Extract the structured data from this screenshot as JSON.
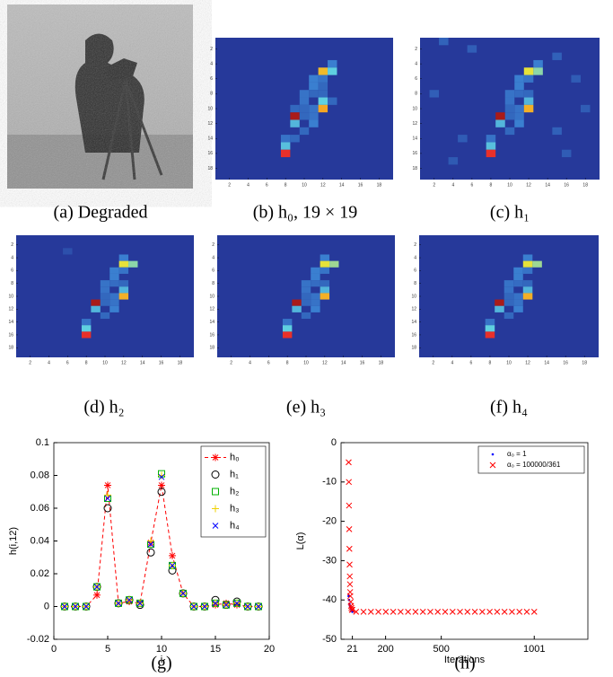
{
  "captions": [
    "(a) Degraded",
    "(b) h₀, 19 × 19",
    "(c) h₁",
    "(d) h₂",
    "(e) h₃",
    "(f) h₄",
    "(g)",
    "(h)"
  ],
  "chart_data": [
    {
      "type": "heatmap",
      "colormap": "jet",
      "background": 0,
      "xlim": [
        0.5,
        19.5
      ],
      "ylim": [
        0.5,
        19.5
      ],
      "xticks": [
        2,
        4,
        6,
        8,
        10,
        12,
        14,
        16,
        18
      ],
      "yticks": [
        2,
        4,
        6,
        8,
        10,
        12,
        14,
        16,
        18
      ],
      "cells": [
        [
          13,
          4,
          0.3
        ],
        [
          12,
          5,
          0.68
        ],
        [
          13,
          5,
          0.45
        ],
        [
          11,
          6,
          0.3
        ],
        [
          12,
          6,
          0.25
        ],
        [
          11,
          7,
          0.3
        ],
        [
          12,
          7,
          0.2
        ],
        [
          10,
          8,
          0.25
        ],
        [
          11,
          8,
          0.2
        ],
        [
          12,
          8,
          0.2
        ],
        [
          10,
          9,
          0.25
        ],
        [
          12,
          9,
          0.45
        ],
        [
          13,
          9,
          0.2
        ],
        [
          9,
          10,
          0.2
        ],
        [
          10,
          10,
          0.2
        ],
        [
          11,
          10,
          0.25
        ],
        [
          12,
          10,
          0.72
        ],
        [
          9,
          11,
          0.95
        ],
        [
          10,
          11,
          0.2
        ],
        [
          11,
          11,
          0.25
        ],
        [
          9,
          12,
          0.4
        ],
        [
          11,
          12,
          0.3
        ],
        [
          10,
          13,
          0.2
        ],
        [
          8,
          14,
          0.25
        ],
        [
          9,
          14,
          0.2
        ],
        [
          8,
          15,
          0.42
        ],
        [
          8,
          16,
          0.85
        ]
      ]
    },
    {
      "type": "heatmap",
      "colormap": "jet",
      "background": 0,
      "xlim": [
        0.5,
        19.5
      ],
      "ylim": [
        0.5,
        19.5
      ],
      "xticks": [
        2,
        4,
        6,
        8,
        10,
        12,
        14,
        16,
        18
      ],
      "yticks": [
        2,
        4,
        6,
        8,
        10,
        12,
        14,
        16,
        18
      ],
      "cells": [
        [
          3,
          1,
          0.18
        ],
        [
          6,
          2,
          0.16
        ],
        [
          15,
          3,
          0.17
        ],
        [
          2,
          8,
          0.16
        ],
        [
          17,
          6,
          0.15
        ],
        [
          5,
          14,
          0.15
        ],
        [
          15,
          13,
          0.17
        ],
        [
          18,
          10,
          0.15
        ],
        [
          4,
          17,
          0.14
        ],
        [
          16,
          16,
          0.15
        ],
        [
          13,
          4,
          0.3
        ],
        [
          12,
          5,
          0.6
        ],
        [
          13,
          5,
          0.5
        ],
        [
          11,
          6,
          0.3
        ],
        [
          12,
          6,
          0.25
        ],
        [
          11,
          7,
          0.3
        ],
        [
          10,
          8,
          0.25
        ],
        [
          11,
          8,
          0.22
        ],
        [
          12,
          8,
          0.2
        ],
        [
          10,
          9,
          0.25
        ],
        [
          12,
          9,
          0.4
        ],
        [
          11,
          10,
          0.25
        ],
        [
          12,
          10,
          0.7
        ],
        [
          10,
          10,
          0.2
        ],
        [
          9,
          11,
          0.95
        ],
        [
          10,
          11,
          0.2
        ],
        [
          11,
          11,
          0.25
        ],
        [
          9,
          12,
          0.4
        ],
        [
          11,
          12,
          0.3
        ],
        [
          10,
          13,
          0.2
        ],
        [
          8,
          14,
          0.25
        ],
        [
          8,
          15,
          0.42
        ],
        [
          8,
          16,
          0.85
        ]
      ]
    },
    {
      "type": "heatmap",
      "colormap": "jet",
      "background": 0,
      "xlim": [
        0.5,
        19.5
      ],
      "ylim": [
        0.5,
        19.5
      ],
      "xticks": [
        2,
        4,
        6,
        8,
        10,
        12,
        14,
        16,
        18
      ],
      "yticks": [
        2,
        4,
        6,
        8,
        10,
        12,
        14,
        16,
        18
      ],
      "cells": [
        [
          6,
          3,
          0.1
        ],
        [
          12,
          4,
          0.3
        ],
        [
          12,
          5,
          0.6
        ],
        [
          13,
          5,
          0.5
        ],
        [
          11,
          6,
          0.3
        ],
        [
          12,
          6,
          0.25
        ],
        [
          11,
          7,
          0.3
        ],
        [
          10,
          8,
          0.25
        ],
        [
          11,
          8,
          0.22
        ],
        [
          12,
          8,
          0.2
        ],
        [
          10,
          9,
          0.25
        ],
        [
          12,
          9,
          0.4
        ],
        [
          11,
          10,
          0.25
        ],
        [
          12,
          10,
          0.7
        ],
        [
          10,
          10,
          0.2
        ],
        [
          9,
          11,
          0.95
        ],
        [
          10,
          11,
          0.2
        ],
        [
          11,
          11,
          0.25
        ],
        [
          9,
          12,
          0.4
        ],
        [
          11,
          12,
          0.3
        ],
        [
          10,
          13,
          0.2
        ],
        [
          8,
          14,
          0.25
        ],
        [
          8,
          15,
          0.45
        ],
        [
          8,
          16,
          0.85
        ]
      ]
    },
    {
      "type": "heatmap",
      "colormap": "jet",
      "background": 0,
      "xlim": [
        0.5,
        19.5
      ],
      "ylim": [
        0.5,
        19.5
      ],
      "xticks": [
        2,
        4,
        6,
        8,
        10,
        12,
        14,
        16,
        18
      ],
      "yticks": [
        2,
        4,
        6,
        8,
        10,
        12,
        14,
        16,
        18
      ],
      "cells": [
        [
          12,
          4,
          0.3
        ],
        [
          12,
          5,
          0.6
        ],
        [
          13,
          5,
          0.52
        ],
        [
          11,
          6,
          0.3
        ],
        [
          12,
          6,
          0.25
        ],
        [
          11,
          7,
          0.3
        ],
        [
          10,
          8,
          0.25
        ],
        [
          11,
          8,
          0.22
        ],
        [
          12,
          8,
          0.2
        ],
        [
          10,
          9,
          0.25
        ],
        [
          12,
          9,
          0.4
        ],
        [
          11,
          10,
          0.25
        ],
        [
          12,
          10,
          0.7
        ],
        [
          10,
          10,
          0.2
        ],
        [
          9,
          11,
          0.95
        ],
        [
          10,
          11,
          0.2
        ],
        [
          11,
          11,
          0.25
        ],
        [
          9,
          12,
          0.4
        ],
        [
          11,
          12,
          0.3
        ],
        [
          10,
          13,
          0.2
        ],
        [
          8,
          14,
          0.25
        ],
        [
          8,
          15,
          0.45
        ],
        [
          8,
          16,
          0.85
        ]
      ]
    },
    {
      "type": "heatmap",
      "colormap": "jet",
      "background": 0,
      "xlim": [
        0.5,
        19.5
      ],
      "ylim": [
        0.5,
        19.5
      ],
      "xticks": [
        2,
        4,
        6,
        8,
        10,
        12,
        14,
        16,
        18
      ],
      "yticks": [
        2,
        4,
        6,
        8,
        10,
        12,
        14,
        16,
        18
      ],
      "cells": [
        [
          12,
          4,
          0.3
        ],
        [
          12,
          5,
          0.6
        ],
        [
          13,
          5,
          0.52
        ],
        [
          11,
          6,
          0.3
        ],
        [
          12,
          6,
          0.25
        ],
        [
          11,
          7,
          0.3
        ],
        [
          10,
          8,
          0.25
        ],
        [
          11,
          8,
          0.22
        ],
        [
          12,
          8,
          0.2
        ],
        [
          10,
          9,
          0.25
        ],
        [
          12,
          9,
          0.4
        ],
        [
          11,
          10,
          0.25
        ],
        [
          12,
          10,
          0.7
        ],
        [
          10,
          10,
          0.2
        ],
        [
          9,
          11,
          0.95
        ],
        [
          10,
          11,
          0.2
        ],
        [
          11,
          11,
          0.25
        ],
        [
          9,
          12,
          0.4
        ],
        [
          11,
          12,
          0.3
        ],
        [
          10,
          13,
          0.2
        ],
        [
          8,
          14,
          0.25
        ],
        [
          8,
          15,
          0.45
        ],
        [
          8,
          16,
          0.85
        ]
      ]
    },
    {
      "type": "line",
      "xlabel": "i",
      "ylabel": "h(i,12)",
      "legend": "upper right",
      "x": [
        1,
        2,
        3,
        4,
        5,
        6,
        7,
        8,
        9,
        10,
        11,
        12,
        13,
        14,
        15,
        16,
        17,
        18,
        19
      ],
      "xlim": [
        0,
        20
      ],
      "ylim": [
        -0.02,
        0.1
      ],
      "xticks": [
        0,
        5,
        10,
        15,
        20
      ],
      "yticks": [
        -0.02,
        0,
        0.02,
        0.04,
        0.06,
        0.08,
        0.1
      ],
      "series": [
        {
          "name": "h₀",
          "color": "#ff0000",
          "marker": "star",
          "linestyle": "dashed",
          "values": [
            0,
            0,
            0,
            0.007,
            0.074,
            0.002,
            0.003,
            0.002,
            0.039,
            0.074,
            0.031,
            0.008,
            0,
            0,
            0.001,
            0.002,
            0.001,
            0,
            0
          ]
        },
        {
          "name": "h₁",
          "color": "#000000",
          "marker": "circle",
          "values": [
            0,
            0,
            0,
            0.012,
            0.06,
            0.002,
            0.004,
            0.001,
            0.033,
            0.07,
            0.022,
            0.008,
            0,
            0,
            0.004,
            0.001,
            0.003,
            0,
            0
          ]
        },
        {
          "name": "h₂",
          "color": "#00b000",
          "marker": "square",
          "values": [
            0,
            0,
            0,
            0.012,
            0.066,
            0.002,
            0.004,
            0.002,
            0.038,
            0.081,
            0.025,
            0.008,
            0,
            0,
            0.002,
            0.001,
            0.002,
            0,
            0
          ]
        },
        {
          "name": "h₃",
          "color": "#f0d000",
          "marker": "plus",
          "values": [
            0,
            0,
            0,
            0.012,
            0.068,
            0.002,
            0.004,
            0.002,
            0.04,
            0.08,
            0.025,
            0.008,
            0,
            0,
            0.002,
            0.001,
            0.002,
            0,
            0
          ]
        },
        {
          "name": "h₄",
          "color": "#0000ff",
          "marker": "x",
          "values": [
            0,
            0,
            0,
            0.012,
            0.066,
            0.002,
            0.004,
            0.002,
            0.038,
            0.079,
            0.025,
            0.008,
            0,
            0,
            0.002,
            0.001,
            0.002,
            0,
            0
          ]
        }
      ]
    },
    {
      "type": "scatter",
      "xlabel": "Iterations",
      "ylabel": "L(α)",
      "legend": "upper right",
      "xlim": [
        -40,
        1290
      ],
      "ylim": [
        -50,
        0
      ],
      "xticks": [
        21,
        200,
        500,
        1001
      ],
      "yticks": [
        -50,
        -40,
        -30,
        -20,
        -10,
        0
      ],
      "series": [
        {
          "name": "α₀ = 1",
          "color": "#0000ff",
          "marker": "dot",
          "x": [
            1,
            3,
            5,
            8,
            12,
            16,
            21
          ],
          "values": [
            -39,
            -40,
            -41,
            -41.5,
            -42,
            -42.5,
            -43
          ]
        },
        {
          "name": "α₀ = 100000/361",
          "color": "#ff0000",
          "marker": "x",
          "x": [
            1,
            2,
            3,
            4,
            5,
            6,
            7,
            8,
            9,
            10,
            12,
            14,
            16,
            18,
            21,
            41,
            81,
            121,
            161,
            201,
            241,
            281,
            321,
            361,
            401,
            441,
            481,
            521,
            561,
            601,
            641,
            681,
            721,
            761,
            801,
            841,
            881,
            921,
            961,
            1001
          ],
          "values": [
            -5,
            -10,
            -16,
            -22,
            -27,
            -31,
            -34,
            -36,
            -38,
            -39,
            -40.5,
            -41.5,
            -42,
            -42.5,
            -42.5,
            -43,
            -43,
            -43,
            -43,
            -43,
            -43,
            -43,
            -43,
            -43,
            -43,
            -43,
            -43,
            -43,
            -43,
            -43,
            -43,
            -43,
            -43,
            -43,
            -43,
            -43,
            -43,
            -43,
            -43,
            -43
          ]
        }
      ]
    }
  ]
}
